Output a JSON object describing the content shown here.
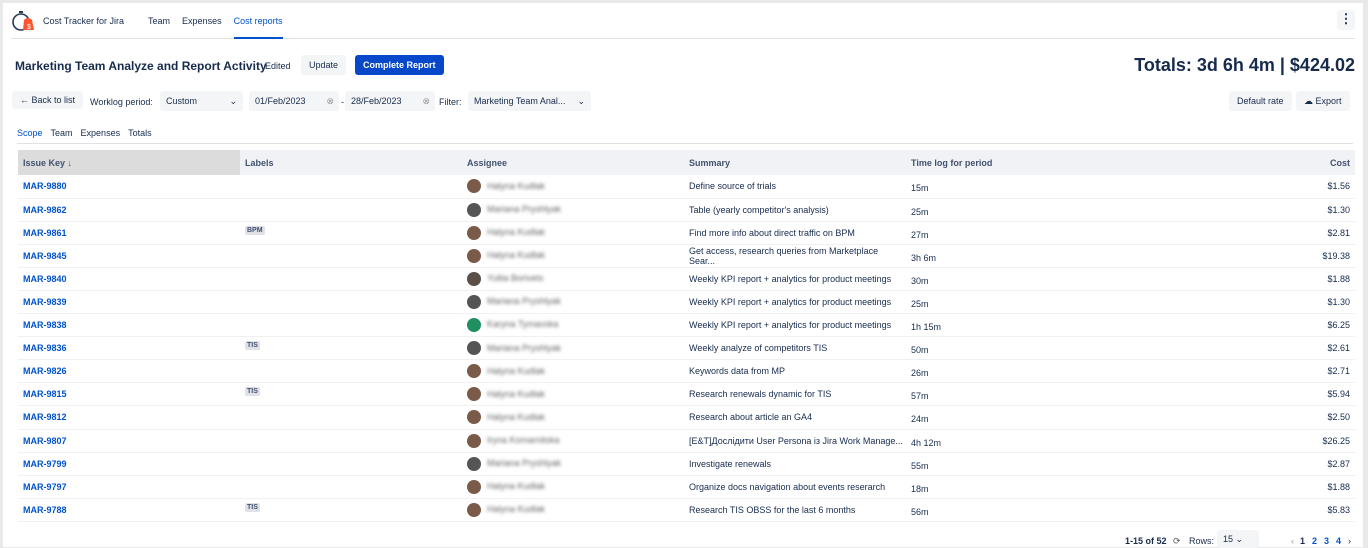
{
  "app": {
    "name": "Cost Tracker for Jira",
    "nav": [
      "Team",
      "Expenses",
      "Cost reports"
    ],
    "active_nav": "Cost reports"
  },
  "report": {
    "title": "Marketing Team Analyze and Report Activity",
    "status": "Edited",
    "update": "Update",
    "complete": "Complete Report",
    "totals": "Totals: 3d 6h 4m | $424.02"
  },
  "toolbar": {
    "back": "← Back to list",
    "period_label": "Worklog period:",
    "period": "Custom",
    "from": "01/Feb/2023",
    "dash": "-",
    "to": "28/Feb/2023",
    "filter_label": "Filter:",
    "filter": "Marketing Team Anal...",
    "default_rate": "Default rate",
    "export": "Export"
  },
  "tabs": [
    "Scope",
    "Team",
    "Expenses",
    "Totals"
  ],
  "columns": [
    "Issue Key ↓",
    "Labels",
    "Assignee",
    "Summary",
    "Time log for period",
    "Cost"
  ],
  "rows": [
    {
      "key": "MAR-9880",
      "label": "",
      "assignee": "Halyna Kudlak",
      "summary": "Define source of trials",
      "time": "15m",
      "cost": "$1.56"
    },
    {
      "key": "MAR-9862",
      "label": "",
      "assignee": "Mariana Pryshlyak",
      "summary": "Table (yearly competitor's analysis)",
      "time": "25m",
      "cost": "$1.30"
    },
    {
      "key": "MAR-9861",
      "label": "BPM",
      "assignee": "Halyna Kudlak",
      "summary": "Find more info about direct traffic on BPM",
      "time": "27m",
      "cost": "$2.81"
    },
    {
      "key": "MAR-9845",
      "label": "",
      "assignee": "Halyna Kudlak",
      "summary": "Get access, research queries from Marketplace Sear...",
      "time": "3h 6m",
      "cost": "$19.38"
    },
    {
      "key": "MAR-9840",
      "label": "",
      "assignee": "Yuliia Borivets",
      "summary": "Weekly KPI report + analytics for product meetings",
      "time": "30m",
      "cost": "$1.88"
    },
    {
      "key": "MAR-9839",
      "label": "",
      "assignee": "Mariana Pryshlyak",
      "summary": "Weekly KPI report + analytics for product meetings",
      "time": "25m",
      "cost": "$1.30"
    },
    {
      "key": "MAR-9838",
      "label": "",
      "assignee": "Karyna Tymavska",
      "summary": "Weekly KPI report + analytics for product meetings",
      "time": "1h 15m",
      "cost": "$6.25"
    },
    {
      "key": "MAR-9836",
      "label": "TIS",
      "assignee": "Mariana Pryshlyak",
      "summary": "Weekly analyze of competitors TIS",
      "time": "50m",
      "cost": "$2.61"
    },
    {
      "key": "MAR-9826",
      "label": "",
      "assignee": "Halyna Kudlak",
      "summary": "Keywords data from MP",
      "time": "26m",
      "cost": "$2.71"
    },
    {
      "key": "MAR-9815",
      "label": "TIS",
      "assignee": "Halyna Kudlak",
      "summary": "Research renewals dynamic for TIS",
      "time": "57m",
      "cost": "$5.94"
    },
    {
      "key": "MAR-9812",
      "label": "",
      "assignee": "Halyna Kudlak",
      "summary": "Research about article an GA4",
      "time": "24m",
      "cost": "$2.50"
    },
    {
      "key": "MAR-9807",
      "label": "",
      "assignee": "Iryna Komarnitska",
      "summary": "[E&T]Дослідити User Persona із Jira Work Manage...",
      "time": "4h 12m",
      "cost": "$26.25"
    },
    {
      "key": "MAR-9799",
      "label": "",
      "assignee": "Mariana Pryshlyak",
      "summary": "Investigate renewals",
      "time": "55m",
      "cost": "$2.87"
    },
    {
      "key": "MAR-9797",
      "label": "",
      "assignee": "Halyna Kudlak",
      "summary": "Organize docs navigation about events reserarch",
      "time": "18m",
      "cost": "$1.88"
    },
    {
      "key": "MAR-9788",
      "label": "TIS",
      "assignee": "Halyna Kudlak",
      "summary": "Research TIS OBSS for the last 6 months",
      "time": "56m",
      "cost": "$5.83"
    }
  ],
  "footer": {
    "range": "1-15 of 52",
    "rows_label": "Rows:",
    "rows": "15",
    "pages": [
      "1",
      "2",
      "3",
      "4"
    ],
    "current_page": "1"
  },
  "colors": {
    "accent": "#0052cc",
    "primary_button": "#0747c9"
  }
}
